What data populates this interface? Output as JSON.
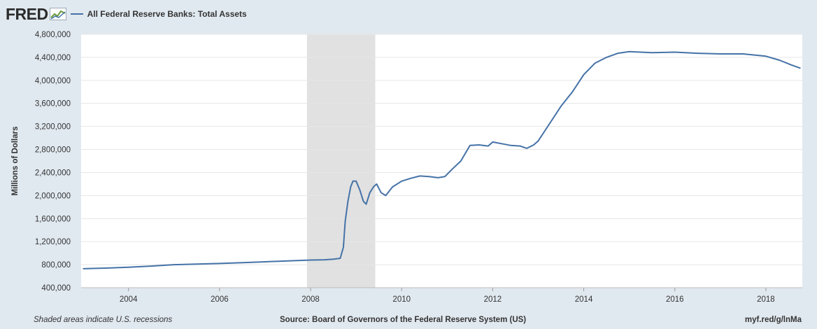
{
  "header": {
    "logo": "FRED",
    "logo_mark_icon": "fred-chart-icon",
    "series_title": "All Federal Reserve Banks: Total Assets",
    "series_color": "#4572a7"
  },
  "footer": {
    "note": "Shaded areas indicate U.S. recessions",
    "source": "Source: Board of Governors of the Federal Reserve System (US)",
    "shortlink": "myf.red/g/lnMa"
  },
  "colors": {
    "background": "#e1e9f0",
    "plot_background": "#ffffff",
    "recession_band": "#e1e1e1",
    "line": "#4572a7",
    "gridline": "#e6e6e6"
  },
  "chart_data": {
    "type": "line",
    "title": "All Federal Reserve Banks: Total Assets",
    "xlabel": "",
    "ylabel": "Millions of Dollars",
    "xlim": [
      2002.96,
      2018.8
    ],
    "ylim": [
      400000,
      4800000
    ],
    "x_ticks": [
      2004,
      2006,
      2008,
      2010,
      2012,
      2014,
      2016,
      2018
    ],
    "y_ticks": [
      400000,
      800000,
      1200000,
      1600000,
      2000000,
      2400000,
      2800000,
      3200000,
      3600000,
      4000000,
      4400000,
      4800000
    ],
    "y_tick_labels": [
      "400,000",
      "800,000",
      "1,200,000",
      "1,600,000",
      "2,000,000",
      "2,400,000",
      "2,800,000",
      "3,200,000",
      "3,600,000",
      "4,000,000",
      "4,400,000",
      "4,800,000"
    ],
    "grid": true,
    "legend": "top-left",
    "recessions": [
      [
        2007.92,
        2009.42
      ]
    ],
    "series": [
      {
        "name": "All Federal Reserve Banks: Total Assets",
        "points": [
          [
            2003.0,
            730000
          ],
          [
            2003.5,
            740000
          ],
          [
            2004.0,
            755000
          ],
          [
            2004.5,
            775000
          ],
          [
            2005.0,
            800000
          ],
          [
            2005.5,
            810000
          ],
          [
            2006.0,
            820000
          ],
          [
            2006.5,
            835000
          ],
          [
            2007.0,
            850000
          ],
          [
            2007.5,
            865000
          ],
          [
            2008.0,
            880000
          ],
          [
            2008.3,
            885000
          ],
          [
            2008.5,
            895000
          ],
          [
            2008.65,
            910000
          ],
          [
            2008.72,
            1100000
          ],
          [
            2008.76,
            1550000
          ],
          [
            2008.82,
            1900000
          ],
          [
            2008.88,
            2150000
          ],
          [
            2008.93,
            2250000
          ],
          [
            2009.0,
            2250000
          ],
          [
            2009.08,
            2100000
          ],
          [
            2009.16,
            1900000
          ],
          [
            2009.22,
            1850000
          ],
          [
            2009.3,
            2050000
          ],
          [
            2009.38,
            2150000
          ],
          [
            2009.45,
            2200000
          ],
          [
            2009.55,
            2050000
          ],
          [
            2009.65,
            2000000
          ],
          [
            2009.8,
            2150000
          ],
          [
            2010.0,
            2250000
          ],
          [
            2010.2,
            2300000
          ],
          [
            2010.4,
            2340000
          ],
          [
            2010.6,
            2330000
          ],
          [
            2010.8,
            2310000
          ],
          [
            2010.95,
            2330000
          ],
          [
            2011.1,
            2450000
          ],
          [
            2011.3,
            2600000
          ],
          [
            2011.5,
            2870000
          ],
          [
            2011.7,
            2880000
          ],
          [
            2011.9,
            2860000
          ],
          [
            2012.0,
            2930000
          ],
          [
            2012.2,
            2900000
          ],
          [
            2012.4,
            2870000
          ],
          [
            2012.6,
            2860000
          ],
          [
            2012.75,
            2820000
          ],
          [
            2012.9,
            2880000
          ],
          [
            2013.0,
            2950000
          ],
          [
            2013.25,
            3250000
          ],
          [
            2013.5,
            3550000
          ],
          [
            2013.75,
            3800000
          ],
          [
            2014.0,
            4100000
          ],
          [
            2014.25,
            4300000
          ],
          [
            2014.5,
            4400000
          ],
          [
            2014.75,
            4470000
          ],
          [
            2015.0,
            4500000
          ],
          [
            2015.5,
            4480000
          ],
          [
            2016.0,
            4490000
          ],
          [
            2016.5,
            4470000
          ],
          [
            2017.0,
            4460000
          ],
          [
            2017.5,
            4460000
          ],
          [
            2018.0,
            4420000
          ],
          [
            2018.3,
            4350000
          ],
          [
            2018.55,
            4270000
          ],
          [
            2018.76,
            4210000
          ]
        ]
      }
    ]
  }
}
